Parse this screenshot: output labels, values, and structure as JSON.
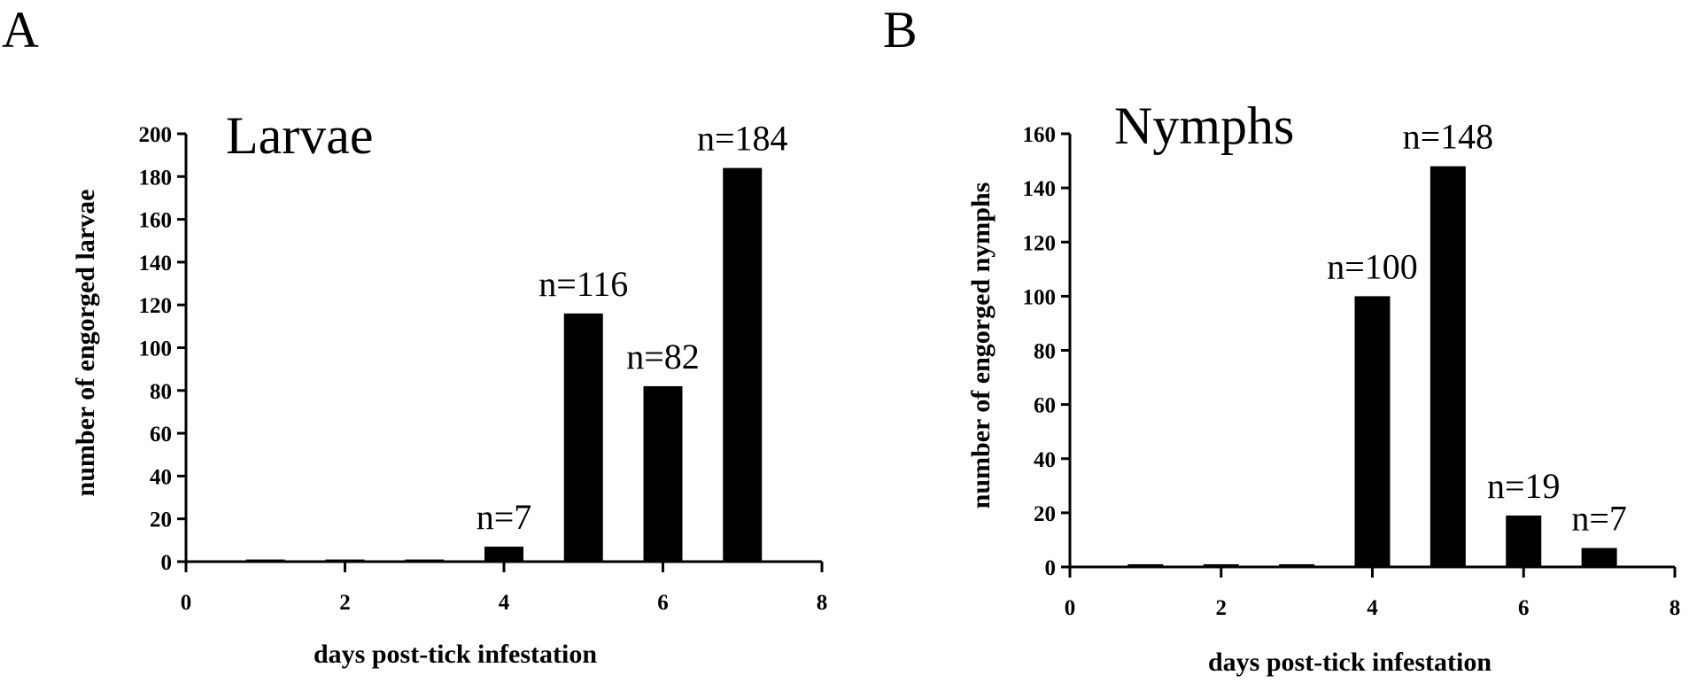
{
  "panels": [
    {
      "letter": "A",
      "chart_data": {
        "type": "bar",
        "title": "Larvae",
        "xlabel": "days post-tick infestation",
        "ylabel": "number of engorged larvae",
        "x": [
          1,
          2,
          3,
          4,
          5,
          6,
          7
        ],
        "values": [
          1,
          1,
          1,
          7,
          116,
          82,
          184
        ],
        "data_labels": [
          "",
          "",
          "",
          "n=7",
          "n=116",
          "n=82",
          "n=184"
        ],
        "xlim": [
          0,
          8
        ],
        "ylim": [
          0,
          200
        ],
        "xticks": [
          "0",
          "2",
          "4",
          "6",
          "8"
        ],
        "yticks": [
          "0",
          "20",
          "40",
          "60",
          "80",
          "100",
          "120",
          "140",
          "160",
          "180",
          "200"
        ],
        "bar_color": "#000000",
        "grid": false
      }
    },
    {
      "letter": "B",
      "chart_data": {
        "type": "bar",
        "title": "Nymphs",
        "xlabel": "days post-tick infestation",
        "ylabel": "number of engorged nymphs",
        "x": [
          1,
          2,
          3,
          4,
          5,
          6,
          7
        ],
        "values": [
          1,
          1,
          1,
          100,
          148,
          19,
          7
        ],
        "data_labels": [
          "",
          "",
          "",
          "n=100",
          "n=148",
          "n=19",
          "n=7"
        ],
        "xlim": [
          0,
          8
        ],
        "ylim": [
          0,
          160
        ],
        "xticks": [
          "0",
          "2",
          "4",
          "6",
          "8"
        ],
        "yticks": [
          "0",
          "20",
          "40",
          "60",
          "80",
          "100",
          "120",
          "140",
          "160"
        ],
        "bar_color": "#000000",
        "grid": false
      }
    }
  ]
}
